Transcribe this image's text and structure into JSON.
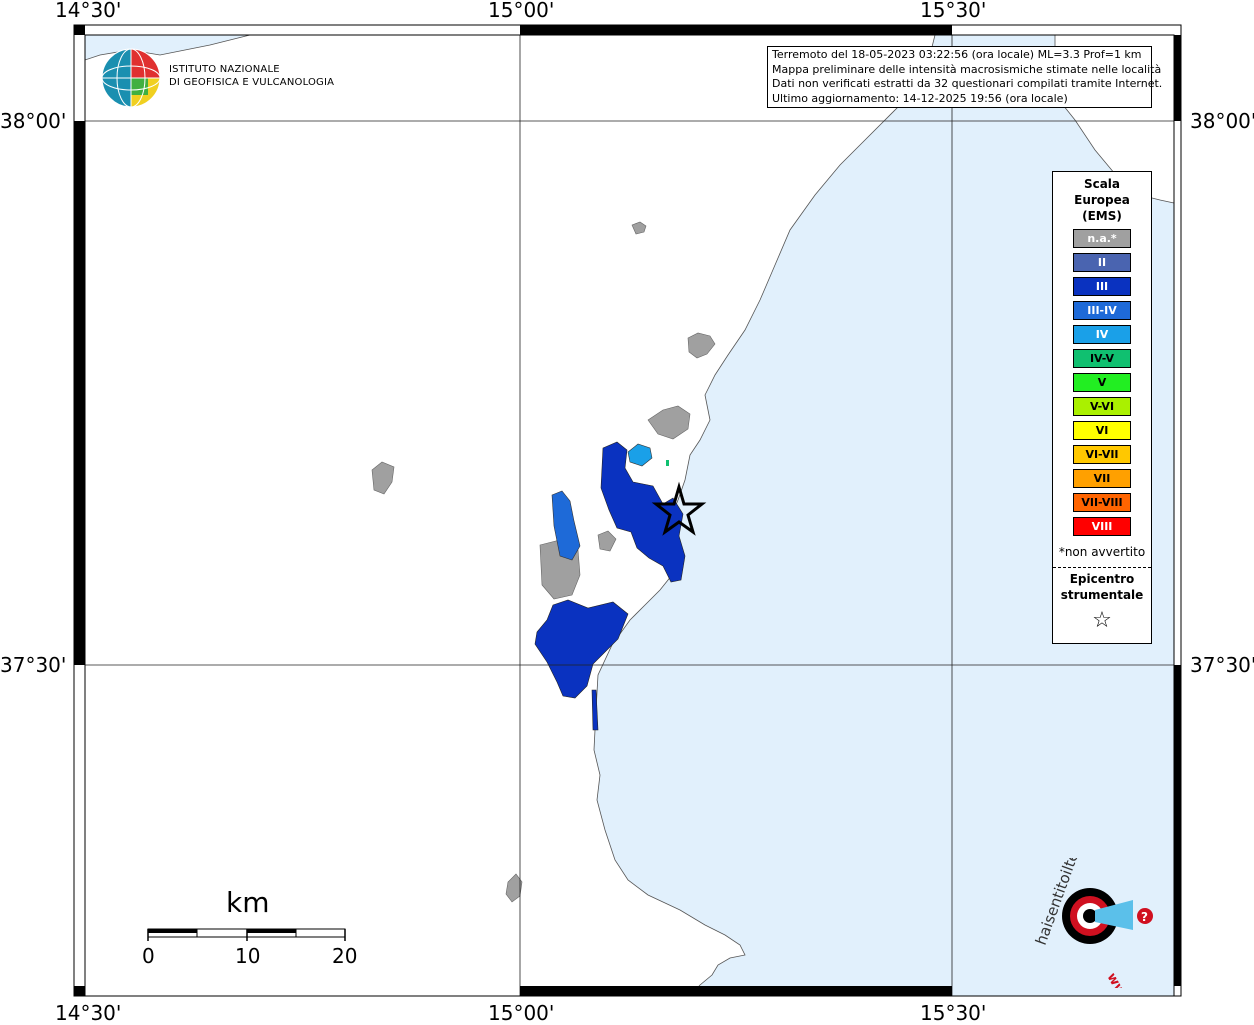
{
  "lon_labels": [
    "14°30'",
    "15°00'",
    "15°30'"
  ],
  "lat_labels": [
    "38°00'",
    "37°30'"
  ],
  "info_box": {
    "line1": "Terremoto del 18-05-2023 03:22:56 (ora locale) ML=3.3 Prof=1 km",
    "line2": "Mappa preliminare delle intensità macrosismiche stimate nelle località",
    "line3": "Dati non verificati estratti da 32 questionari compilati tramite Internet.",
    "line4": "Ultimo aggiornamento: 14-12-2025 19:56 (ora locale)"
  },
  "logo": {
    "line1": "ISTITUTO NAZIONALE",
    "line2": "DI GEOFISICA E VULCANOLOGIA"
  },
  "legend": {
    "title_lines": [
      "Scala",
      "Europea",
      "(EMS)"
    ],
    "items": [
      {
        "label": "n.a.*",
        "color": "#a0a0a0",
        "text_color": "#ffffff"
      },
      {
        "label": "II",
        "color": "#4a64b0",
        "text_color": "#ffffff"
      },
      {
        "label": "III",
        "color": "#0a32c0",
        "text_color": "#ffffff"
      },
      {
        "label": "III-IV",
        "color": "#1e6ad8",
        "text_color": "#ffffff"
      },
      {
        "label": "IV",
        "color": "#1aa0e8",
        "text_color": "#ffffff"
      },
      {
        "label": "IV-V",
        "color": "#10c070",
        "text_color": "#000000"
      },
      {
        "label": "V",
        "color": "#22ee22",
        "text_color": "#000000"
      },
      {
        "label": "V-VI",
        "color": "#aaf000",
        "text_color": "#000000"
      },
      {
        "label": "VI",
        "color": "#ffff00",
        "text_color": "#000000"
      },
      {
        "label": "VI-VII",
        "color": "#ffc800",
        "text_color": "#000000"
      },
      {
        "label": "VII",
        "color": "#ffa000",
        "text_color": "#000000"
      },
      {
        "label": "VII-VIII",
        "color": "#ff6400",
        "text_color": "#000000"
      },
      {
        "label": "VIII",
        "color": "#ff0000",
        "text_color": "#ffffff"
      }
    ],
    "not_felt_note": "*non avvertito",
    "epicenter_lines": [
      "Epicentro",
      "strumentale"
    ],
    "epicenter_symbol": "☆"
  },
  "scale_bar": {
    "unit": "km",
    "ticks": [
      "0",
      "10",
      "20"
    ]
  },
  "watermark": {
    "text": "haisentitoilterremoto.it",
    "prefix": "www.",
    "question_mark": "?"
  },
  "colors": {
    "sea": "#e1f0fc",
    "land": "#ffffff",
    "na": "#a0a0a0",
    "ems_III": "#0a32c0",
    "ems_III_IV": "#1e6ad8",
    "ems_IV": "#1aa0e8",
    "watermark_red": "#d01020"
  }
}
